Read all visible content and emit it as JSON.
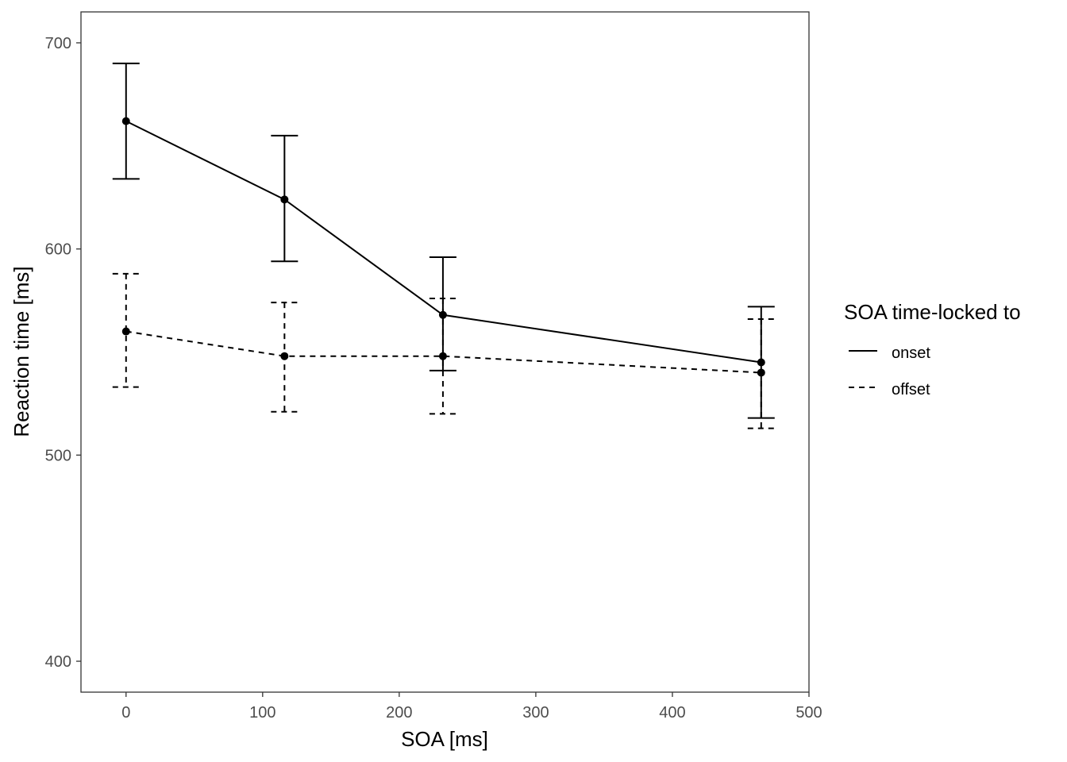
{
  "chart_data": {
    "type": "line",
    "xlabel": "SOA [ms]",
    "ylabel": "Reaction time [ms]",
    "xlim": [
      -33,
      500
    ],
    "ylim": [
      385,
      715
    ],
    "x_ticks": [
      0,
      100,
      200,
      300,
      400,
      500
    ],
    "y_ticks": [
      400,
      500,
      600,
      700
    ],
    "grid": false,
    "legend": {
      "title": "SOA time-locked to",
      "placement": "right",
      "entries": [
        "onset",
        "offset"
      ]
    },
    "series": [
      {
        "name": "onset",
        "line_style": "solid",
        "x": [
          0,
          116,
          232,
          465
        ],
        "y": [
          662,
          624,
          568,
          545
        ],
        "err_low": [
          634,
          594,
          541,
          518
        ],
        "err_high": [
          690,
          655,
          596,
          572
        ]
      },
      {
        "name": "offset",
        "line_style": "dashed",
        "x": [
          0,
          116,
          232,
          465
        ],
        "y": [
          560,
          548,
          548,
          540
        ],
        "err_low": [
          533,
          521,
          520,
          513
        ],
        "err_high": [
          588,
          574,
          576,
          566
        ]
      }
    ],
    "color": "#000000"
  }
}
